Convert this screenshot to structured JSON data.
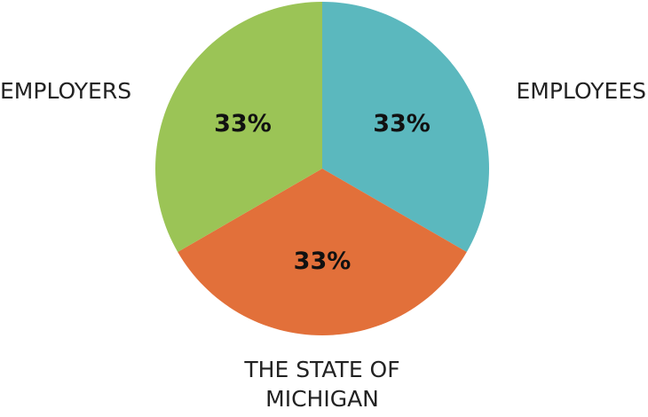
{
  "chart_data": {
    "type": "pie",
    "categories": [
      "EMPLOYEES",
      "THE STATE OF MICHIGAN",
      "EMPLOYERS"
    ],
    "values": [
      33,
      33,
      33
    ],
    "value_labels": [
      "33%",
      "33%",
      "33%"
    ],
    "colors": [
      "#5bb8be",
      "#e2703a",
      "#9bc456"
    ]
  }
}
